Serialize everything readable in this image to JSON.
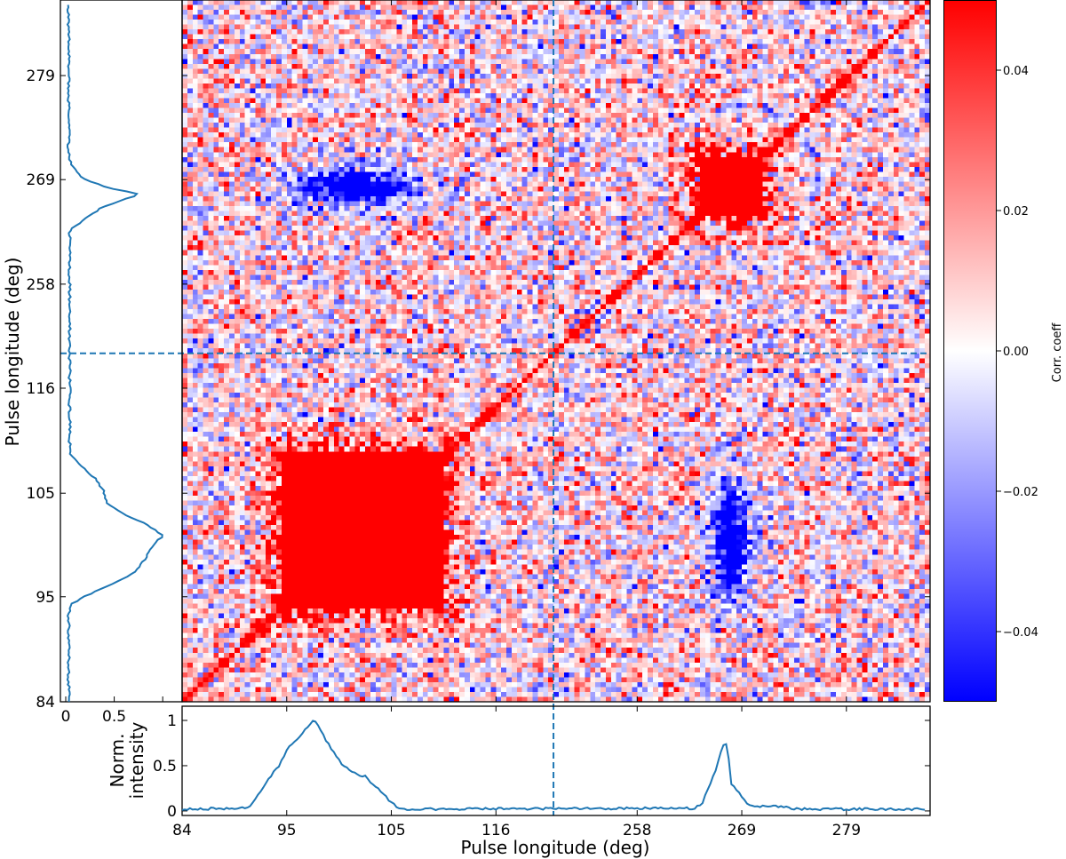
{
  "chart_data": {
    "type": "heatmap",
    "title": "",
    "xlabel": "Pulse longitude (deg)",
    "ylabel": "Pulse longitude (deg)",
    "n_bins": 143,
    "break_bin": 71,
    "x_ticks": {
      "bins": [
        0,
        20,
        40,
        60,
        87,
        107,
        127
      ],
      "labels": [
        "84",
        "95",
        "105",
        "116",
        "258",
        "269",
        "279"
      ]
    },
    "y_ticks": {
      "bins": [
        0,
        21.4,
        42.5,
        63.9,
        85.1,
        106.4,
        127.6
      ],
      "labels": [
        "84",
        "95",
        "105",
        "116",
        "258",
        "269",
        "279"
      ]
    },
    "colorbar": {
      "label": "Corr. coeff",
      "colormap": "bwr",
      "range": [
        -0.05,
        0.05
      ],
      "ticks": [
        0.04,
        0.02,
        0.0,
        -0.02,
        -0.04
      ],
      "tick_labels": [
        "0.04",
        "0.02",
        "0.00",
        "−0.02",
        "−0.04"
      ]
    },
    "heatmap": {
      "background_mean": 0.004,
      "background_sd": 0.02,
      "diagonal_value": 0.06,
      "red_blocks": [
        {
          "name": "main-component-block",
          "x_bins": [
            19,
            49
          ],
          "y_bins": [
            19,
            50
          ],
          "value": 0.06
        },
        {
          "name": "second-component-block",
          "x_bins": [
            99,
            110
          ],
          "y_bins": [
            99,
            110
          ],
          "value": 0.06
        }
      ],
      "blue_blobs": [
        {
          "name": "anticorrelation-upper-left",
          "center_bins": [
            32,
            104.5
          ],
          "spread_bins": [
            8,
            2.6
          ],
          "value": -0.09
        },
        {
          "name": "anticorrelation-lower-right",
          "center_bins": [
            104.5,
            32
          ],
          "spread_bins": [
            2.6,
            8
          ],
          "value": -0.09
        }
      ]
    },
    "bottom_profile": {
      "ylabel_lines": [
        "Norm.",
        "intensity"
      ],
      "yticks": [
        0,
        0.5,
        1
      ],
      "ytick_labels": [
        "0",
        "0.5",
        "1"
      ],
      "ylim": [
        -0.05,
        1.157
      ],
      "points": [
        [
          0,
          0.02
        ],
        [
          12,
          0.03
        ],
        [
          13,
          0.06
        ],
        [
          14.5,
          0.17
        ],
        [
          16.5,
          0.35
        ],
        [
          18.5,
          0.5
        ],
        [
          20.5,
          0.72
        ],
        [
          22,
          0.8
        ],
        [
          23.5,
          0.9
        ],
        [
          25,
          1.0
        ],
        [
          25.8,
          0.96
        ],
        [
          27.5,
          0.78
        ],
        [
          29,
          0.65
        ],
        [
          30.5,
          0.52
        ],
        [
          32,
          0.45
        ],
        [
          33.5,
          0.4
        ],
        [
          35,
          0.38
        ],
        [
          36.5,
          0.3
        ],
        [
          38,
          0.22
        ],
        [
          39.5,
          0.12
        ],
        [
          41,
          0.05
        ],
        [
          42,
          0.02
        ],
        [
          98,
          0.03
        ],
        [
          99.3,
          0.07
        ],
        [
          101,
          0.3
        ],
        [
          102,
          0.45
        ],
        [
          103,
          0.65
        ],
        [
          103.5,
          0.73
        ],
        [
          104.2,
          0.73
        ],
        [
          105,
          0.3
        ],
        [
          106.5,
          0.2
        ],
        [
          108,
          0.08
        ],
        [
          109.5,
          0.05
        ],
        [
          115.5,
          0.05
        ],
        [
          116.5,
          0.02
        ],
        [
          142,
          0.02
        ]
      ]
    },
    "left_profile": {
      "xticks": [
        0,
        0.5
      ],
      "xtick_labels": [
        "0",
        "0.5"
      ],
      "xlim": [
        -0.055,
        1.2
      ],
      "points": [
        [
          0,
          0.03
        ],
        [
          18,
          0.03
        ],
        [
          20,
          0.07
        ],
        [
          21.4,
          0.19
        ],
        [
          23.5,
          0.42
        ],
        [
          26.2,
          0.7
        ],
        [
          29,
          0.82
        ],
        [
          31.7,
          0.9
        ],
        [
          33.9,
          1.0
        ],
        [
          36.2,
          0.83
        ],
        [
          37.5,
          0.68
        ],
        [
          39,
          0.54
        ],
        [
          40.7,
          0.42
        ],
        [
          43.4,
          0.38
        ],
        [
          45.3,
          0.31
        ],
        [
          47,
          0.22
        ],
        [
          49,
          0.12
        ],
        [
          50,
          0.06
        ],
        [
          51,
          0.04
        ],
        [
          96,
          0.04
        ],
        [
          97,
          0.1
        ],
        [
          100.5,
          0.35
        ],
        [
          103,
          0.7
        ],
        [
          103.6,
          0.73
        ],
        [
          104.6,
          0.45
        ],
        [
          106.8,
          0.15
        ],
        [
          110,
          0.05
        ],
        [
          111,
          0.03
        ],
        [
          142,
          0.03
        ]
      ]
    },
    "series_color": "#1f77b4"
  }
}
